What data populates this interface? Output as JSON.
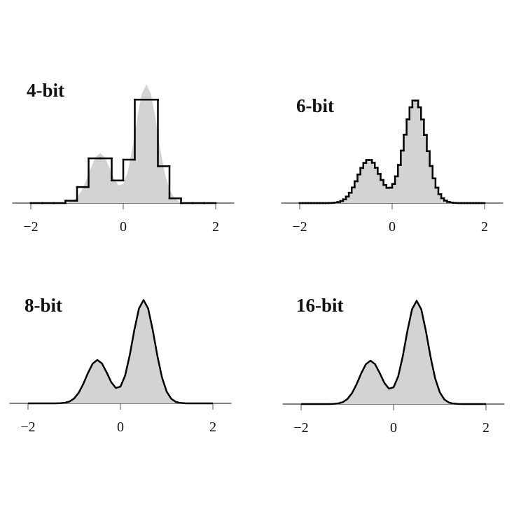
{
  "chart_data": [
    {
      "type": "histogram",
      "title": "4-bit",
      "bins": [
        -2,
        -1.75,
        -1.5,
        -1.25,
        -1,
        -0.75,
        -0.5,
        -0.25,
        0,
        0.25,
        0.5,
        0.75,
        1,
        1.25,
        1.5,
        1.75,
        2
      ],
      "counts": [
        0,
        0,
        0,
        0.02,
        0.135,
        0.376,
        0.376,
        0.19,
        0.365,
        0.87,
        0.87,
        0.31,
        0.04,
        0,
        0,
        0
      ],
      "density": {
        "x": [
          -2,
          -1.9,
          -1.8,
          -1.7,
          -1.6,
          -1.5,
          -1.4,
          -1.3,
          -1.2,
          -1.1,
          -1,
          -0.9,
          -0.8,
          -0.7,
          -0.6,
          -0.5,
          -0.4,
          -0.3,
          -0.2,
          -0.1,
          0,
          0.1,
          0.2,
          0.3,
          0.4,
          0.5,
          0.6,
          0.7,
          0.8,
          0.9,
          1,
          1.1,
          1.2,
          1.3,
          1.4,
          1.5,
          1.6,
          1.7,
          1.8,
          1.9,
          2
        ],
        "values": [
          0,
          0,
          0,
          0,
          0,
          0,
          0,
          0.002,
          0.006,
          0.018,
          0.048,
          0.105,
          0.192,
          0.297,
          0.385,
          0.42,
          0.386,
          0.301,
          0.206,
          0.149,
          0.162,
          0.267,
          0.464,
          0.709,
          0.917,
          1,
          0.917,
          0.707,
          0.458,
          0.249,
          0.114,
          0.044,
          0.014,
          0.004,
          0.001,
          0,
          0,
          0,
          0,
          0,
          0
        ],
        "color": "#d3d3d3"
      },
      "color": "#000000",
      "xlim": [
        -2.4,
        2.4
      ],
      "xticks": [
        {
          "value": -2,
          "label": "−2"
        },
        0,
        2
      ],
      "ylim": [
        0,
        1.06
      ]
    },
    {
      "type": "histogram",
      "title": "6-bit",
      "bins": [
        -2,
        -1.9375,
        -1.875,
        -1.8125,
        -1.75,
        -1.6875,
        -1.625,
        -1.5625,
        -1.5,
        -1.4375,
        -1.375,
        -1.3125,
        -1.25,
        -1.1875,
        -1.125,
        -1.0625,
        -1,
        -0.9375,
        -0.875,
        -0.8125,
        -0.75,
        -0.6875,
        -0.625,
        -0.5625,
        -0.5,
        -0.4375,
        -0.375,
        -0.3125,
        -0.25,
        -0.1875,
        -0.125,
        -0.0625,
        0,
        0.0625,
        0.125,
        0.1875,
        0.25,
        0.3125,
        0.375,
        0.4375,
        0.5,
        0.5625,
        0.625,
        0.6875,
        0.75,
        0.8125,
        0.875,
        0.9375,
        1,
        1.0625,
        1.125,
        1.1875,
        1.25,
        1.3125,
        1.375,
        1.4375,
        1.5,
        1.5625,
        1.625,
        1.6875,
        1.75,
        1.8125,
        1.875,
        1.9375,
        2
      ],
      "counts": [
        0,
        0,
        0,
        0,
        0,
        0,
        0,
        0,
        0,
        0,
        0.001,
        0.002,
        0.005,
        0.01,
        0.02,
        0.036,
        0.063,
        0.1,
        0.151,
        0.211,
        0.277,
        0.34,
        0.389,
        0.417,
        0.417,
        0.39,
        0.342,
        0.282,
        0.223,
        0.175,
        0.147,
        0.149,
        0.185,
        0.259,
        0.369,
        0.508,
        0.662,
        0.81,
        0.927,
        0.992,
        0.992,
        0.927,
        0.809,
        0.66,
        0.503,
        0.359,
        0.239,
        0.149,
        0.086,
        0.047,
        0.024,
        0.011,
        0.005,
        0.002,
        0.001,
        0,
        0,
        0,
        0,
        0,
        0,
        0,
        0,
        0
      ],
      "density": {
        "x": [
          -2,
          -1.9,
          -1.8,
          -1.7,
          -1.6,
          -1.5,
          -1.4,
          -1.3,
          -1.2,
          -1.1,
          -1,
          -0.9,
          -0.8,
          -0.7,
          -0.6,
          -0.5,
          -0.4,
          -0.3,
          -0.2,
          -0.1,
          0,
          0.1,
          0.2,
          0.3,
          0.4,
          0.5,
          0.6,
          0.7,
          0.8,
          0.9,
          1,
          1.1,
          1.2,
          1.3,
          1.4,
          1.5,
          1.6,
          1.7,
          1.8,
          1.9,
          2
        ],
        "values": [
          0,
          0,
          0,
          0,
          0,
          0,
          0,
          0.002,
          0.006,
          0.018,
          0.048,
          0.105,
          0.192,
          0.297,
          0.385,
          0.42,
          0.386,
          0.301,
          0.206,
          0.149,
          0.162,
          0.267,
          0.464,
          0.709,
          0.917,
          1,
          0.917,
          0.707,
          0.458,
          0.249,
          0.114,
          0.044,
          0.014,
          0.004,
          0.001,
          0,
          0,
          0,
          0,
          0,
          0
        ],
        "color": "#d3d3d3"
      },
      "color": "#000000",
      "xlim": [
        -2.4,
        2.4
      ],
      "xticks": [
        {
          "value": -2,
          "label": "−2"
        },
        0,
        2
      ],
      "ylim": [
        0,
        1.22
      ]
    },
    {
      "type": "area",
      "title": "8-bit",
      "x": [
        -2,
        -1.9,
        -1.8,
        -1.7,
        -1.6,
        -1.5,
        -1.4,
        -1.3,
        -1.2,
        -1.1,
        -1,
        -0.9,
        -0.8,
        -0.7,
        -0.6,
        -0.5,
        -0.4,
        -0.3,
        -0.2,
        -0.1,
        0,
        0.1,
        0.2,
        0.3,
        0.4,
        0.5,
        0.6,
        0.7,
        0.8,
        0.9,
        1,
        1.1,
        1.2,
        1.3,
        1.4,
        1.5,
        1.6,
        1.7,
        1.8,
        1.9,
        2
      ],
      "values": [
        0,
        0,
        0,
        0,
        0,
        0,
        0,
        0.002,
        0.006,
        0.018,
        0.048,
        0.105,
        0.192,
        0.297,
        0.385,
        0.42,
        0.386,
        0.301,
        0.206,
        0.149,
        0.162,
        0.267,
        0.464,
        0.709,
        0.917,
        1,
        0.917,
        0.707,
        0.458,
        0.249,
        0.114,
        0.044,
        0.014,
        0.004,
        0.001,
        0,
        0,
        0,
        0,
        0,
        0
      ],
      "color": "#d3d3d3",
      "line_color": "#000000",
      "xlim": [
        -2.4,
        2.4
      ],
      "xticks": [
        {
          "value": -2,
          "label": "−2"
        },
        0,
        2
      ],
      "ylim": [
        0,
        1.22
      ]
    },
    {
      "type": "area",
      "title": "16-bit",
      "x": [
        -2,
        -1.9,
        -1.8,
        -1.7,
        -1.6,
        -1.5,
        -1.4,
        -1.3,
        -1.2,
        -1.1,
        -1,
        -0.9,
        -0.8,
        -0.7,
        -0.6,
        -0.5,
        -0.4,
        -0.3,
        -0.2,
        -0.1,
        0,
        0.1,
        0.2,
        0.3,
        0.4,
        0.5,
        0.6,
        0.7,
        0.8,
        0.9,
        1,
        1.1,
        1.2,
        1.3,
        1.4,
        1.5,
        1.6,
        1.7,
        1.8,
        1.9,
        2
      ],
      "values": [
        0,
        0,
        0,
        0,
        0,
        0,
        0,
        0.002,
        0.006,
        0.018,
        0.048,
        0.105,
        0.192,
        0.297,
        0.385,
        0.42,
        0.386,
        0.301,
        0.206,
        0.149,
        0.162,
        0.267,
        0.464,
        0.709,
        0.917,
        1,
        0.917,
        0.707,
        0.458,
        0.249,
        0.114,
        0.044,
        0.014,
        0.004,
        0.001,
        0,
        0,
        0,
        0,
        0,
        0
      ],
      "color": "#d3d3d3",
      "line_color": "#000000",
      "xlim": [
        -2.4,
        2.4
      ],
      "xticks": [
        {
          "value": -2,
          "label": "−2"
        },
        0,
        2
      ],
      "ylim": [
        0,
        1.22
      ]
    }
  ]
}
